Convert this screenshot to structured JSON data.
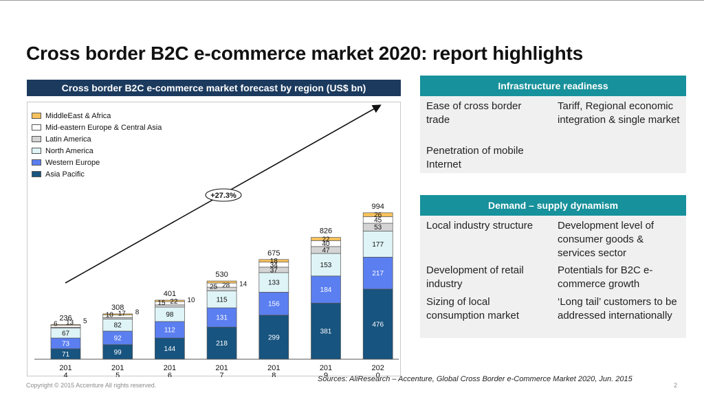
{
  "title": "Cross border B2C e-commerce market 2020: report highlights",
  "chart_data": {
    "type": "bar",
    "stacked": true,
    "title": "Cross border B2C e-commerce market forecast by region (US$ bn)",
    "categories": [
      "201\n4",
      "201\n5",
      "201\n6",
      "201\n7",
      "201\n8",
      "201\n9",
      "202\n0"
    ],
    "totals": [
      236,
      308,
      401,
      530,
      675,
      826,
      994
    ],
    "series": [
      {
        "name": "Asia Pacific",
        "color": "#17547f",
        "values": [
          71,
          99,
          144,
          218,
          299,
          381,
          476
        ]
      },
      {
        "name": "Western Europe",
        "color": "#5b7ff0",
        "values": [
          73,
          92,
          112,
          131,
          156,
          184,
          217
        ]
      },
      {
        "name": "North America",
        "color": "#dff4f7",
        "values": [
          67,
          82,
          98,
          115,
          133,
          153,
          177
        ]
      },
      {
        "name": "Latin America",
        "color": "#d4d4d4",
        "values": [
          6,
          10,
          15,
          25,
          37,
          47,
          53
        ]
      },
      {
        "name": "Mid-eastern Europe & Central Asia",
        "color": "#ffffff",
        "values": [
          13,
          17,
          22,
          28,
          34,
          40,
          45
        ]
      },
      {
        "name": "MiddleEast & Africa",
        "color": "#f7c15c",
        "values": [
          5,
          8,
          10,
          14,
          18,
          22,
          26
        ]
      }
    ],
    "legend_position": "top-left",
    "annotation": "+27.3%",
    "grid": false
  },
  "infrastructure": {
    "header": "Infrastructure readiness",
    "items": [
      "Ease of cross border trade",
      "Tariff, Regional economic integration & single market",
      "Penetration of mobile Internet"
    ]
  },
  "demand": {
    "header": "Demand – supply dynamism",
    "items": [
      "Local industry structure",
      "Development level of consumer goods & services sector",
      "Development of retail industry",
      "Potentials for B2C e-commerce growth",
      "Sizing of local consumption market",
      "‘Long tail’ customers to be addressed internationally"
    ]
  },
  "footer": {
    "sources": "Sources: AliResearch – Accenture, Global Cross Border e-Commerce Market 2020, Jun. 2015",
    "copyright": "Copyright © 2015 Accenture  All rights reserved.",
    "page": "2"
  }
}
